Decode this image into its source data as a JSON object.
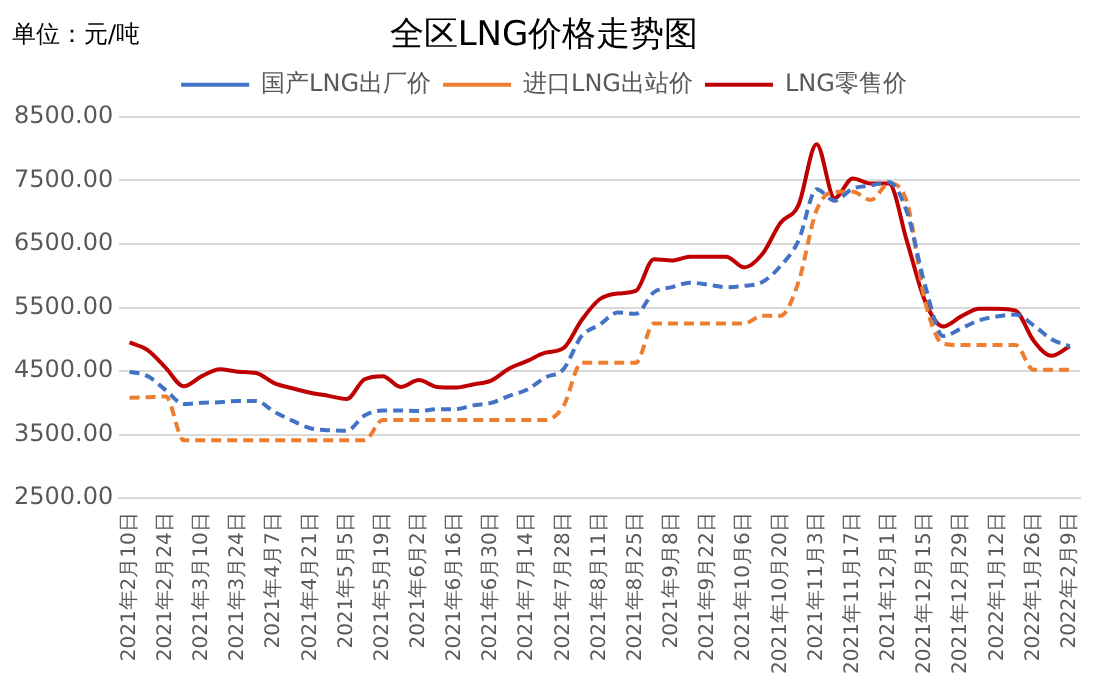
{
  "chart_data": {
    "type": "line",
    "title": "全区LNG价格走势图",
    "annotations": [
      "单位：元/吨"
    ],
    "x": [
      "2021-02-10",
      "2021-02-17",
      "2021-02-24",
      "2021-03-03",
      "2021-03-10",
      "2021-03-17",
      "2021-03-24",
      "2021-03-31",
      "2021-04-07",
      "2021-04-14",
      "2021-04-21",
      "2021-04-28",
      "2021-05-05",
      "2021-05-12",
      "2021-05-19",
      "2021-05-26",
      "2021-06-02",
      "2021-06-09",
      "2021-06-16",
      "2021-06-23",
      "2021-06-30",
      "2021-07-07",
      "2021-07-14",
      "2021-07-21",
      "2021-07-28",
      "2021-08-04",
      "2021-08-11",
      "2021-08-18",
      "2021-08-25",
      "2021-09-01",
      "2021-09-08",
      "2021-09-15",
      "2021-09-22",
      "2021-09-29",
      "2021-10-06",
      "2021-10-13",
      "2021-10-20",
      "2021-10-27",
      "2021-11-03",
      "2021-11-10",
      "2021-11-17",
      "2021-11-24",
      "2021-12-01",
      "2021-12-08",
      "2021-12-15",
      "2021-12-22",
      "2021-12-29",
      "2022-01-05",
      "2022-01-12",
      "2022-01-19",
      "2022-01-26",
      "2022-02-02",
      "2022-02-09"
    ],
    "series": [
      {
        "name": "国产LNG出厂价",
        "color": "#4472c4",
        "line_style": "dashed",
        "values": [
          4490,
          4420,
          4200,
          3980,
          4000,
          4010,
          4030,
          4030,
          3860,
          3720,
          3600,
          3570,
          3560,
          3800,
          3880,
          3880,
          3870,
          3900,
          3900,
          3960,
          4000,
          4110,
          4210,
          4400,
          4530,
          5050,
          5230,
          5420,
          5400,
          5740,
          5820,
          5890,
          5860,
          5820,
          5840,
          5900,
          6150,
          6550,
          7360,
          7180,
          7370,
          7420,
          7470,
          7000,
          5850,
          5050,
          5170,
          5300,
          5360,
          5390,
          5220,
          5000,
          4890
        ]
      },
      {
        "name": "进口LNG出站价",
        "color": "#ed7d31",
        "line_style": "dashed",
        "values": [
          4080,
          4090,
          4100,
          3410,
          3410,
          3410,
          3410,
          3410,
          3410,
          3410,
          3410,
          3410,
          3410,
          3410,
          3730,
          3730,
          3730,
          3730,
          3730,
          3730,
          3730,
          3730,
          3730,
          3730,
          3950,
          4630,
          4630,
          4630,
          4630,
          5250,
          5250,
          5250,
          5250,
          5250,
          5250,
          5370,
          5370,
          5900,
          7030,
          7320,
          7320,
          7190,
          7450,
          7160,
          5600,
          4930,
          4910,
          4910,
          4910,
          4910,
          4520,
          4520,
          4520
        ]
      },
      {
        "name": "LNG零售价",
        "color": "#c00000",
        "line_style": "solid",
        "values": [
          4950,
          4830,
          4550,
          4260,
          4420,
          4530,
          4490,
          4470,
          4310,
          4230,
          4160,
          4110,
          4060,
          4370,
          4420,
          4250,
          4360,
          4250,
          4240,
          4290,
          4350,
          4540,
          4660,
          4790,
          4860,
          5300,
          5630,
          5720,
          5760,
          6260,
          6240,
          6300,
          6300,
          6300,
          6130,
          6340,
          6830,
          7110,
          8070,
          7220,
          7530,
          7450,
          7450,
          6540,
          5600,
          5200,
          5360,
          5480,
          5480,
          5450,
          4980,
          4740,
          4890
        ]
      }
    ],
    "xlim": [
      "2021-02-06",
      "2022-02-13"
    ],
    "xticks": [
      {
        "value": "2021-02-10",
        "label": "2021年2月10日"
      },
      {
        "value": "2021-02-24",
        "label": "2021年2月24日"
      },
      {
        "value": "2021-03-10",
        "label": "2021年3月10日"
      },
      {
        "value": "2021-03-24",
        "label": "2021年3月24日"
      },
      {
        "value": "2021-04-07",
        "label": "2021年4月7日"
      },
      {
        "value": "2021-04-21",
        "label": "2021年4月21日"
      },
      {
        "value": "2021-05-05",
        "label": "2021年5月5日"
      },
      {
        "value": "2021-05-19",
        "label": "2021年5月19日"
      },
      {
        "value": "2021-06-02",
        "label": "2021年6月2日"
      },
      {
        "value": "2021-06-16",
        "label": "2021年6月16日"
      },
      {
        "value": "2021-06-30",
        "label": "2021年6月30日"
      },
      {
        "value": "2021-07-14",
        "label": "2021年7月14日"
      },
      {
        "value": "2021-07-28",
        "label": "2021年7月28日"
      },
      {
        "value": "2021-08-11",
        "label": "2021年8月11日"
      },
      {
        "value": "2021-08-25",
        "label": "2021年8月25日"
      },
      {
        "value": "2021-09-08",
        "label": "2021年9月8日"
      },
      {
        "value": "2021-09-22",
        "label": "2021年9月22日"
      },
      {
        "value": "2021-10-06",
        "label": "2021年10月6日"
      },
      {
        "value": "2021-10-20",
        "label": "2021年10月20日"
      },
      {
        "value": "2021-11-03",
        "label": "2021年11月3日"
      },
      {
        "value": "2021-11-17",
        "label": "2021年11月17日"
      },
      {
        "value": "2021-12-01",
        "label": "2021年12月1日"
      },
      {
        "value": "2021-12-15",
        "label": "2021年12月15日"
      },
      {
        "value": "2021-12-29",
        "label": "2021年12月29日"
      },
      {
        "value": "2022-01-12",
        "label": "2022年1月12日"
      },
      {
        "value": "2022-01-26",
        "label": "2022年1月26日"
      },
      {
        "value": "2022-02-09",
        "label": "2022年2月9日"
      }
    ],
    "ylim": [
      2500,
      8500
    ],
    "yticks": [
      {
        "value": 2500,
        "label": "2500.00"
      },
      {
        "value": 3500,
        "label": "3500.00"
      },
      {
        "value": 4500,
        "label": "4500.00"
      },
      {
        "value": 5500,
        "label": "5500.00"
      },
      {
        "value": 6500,
        "label": "6500.00"
      },
      {
        "value": 7500,
        "label": "7500.00"
      },
      {
        "value": 8500,
        "label": "8500.00"
      }
    ],
    "grid": "y",
    "legend": "top",
    "marker": "none"
  }
}
